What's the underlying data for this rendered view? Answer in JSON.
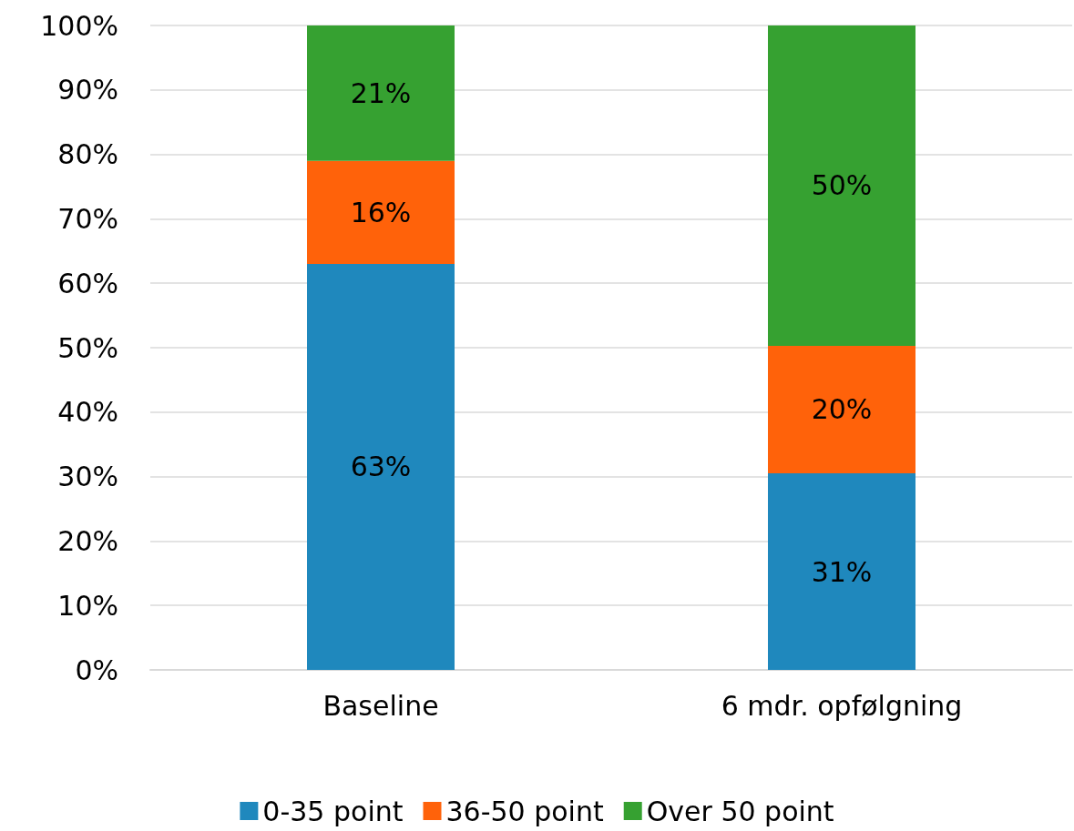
{
  "chart_data": {
    "type": "bar",
    "stacked": true,
    "categories": [
      "Baseline",
      "6 mdr. opfølgning"
    ],
    "series": [
      {
        "name": "0-35 point",
        "color": "#1f88bd",
        "values": [
          63,
          30.5
        ],
        "value_labels": [
          "63%",
          "31%"
        ]
      },
      {
        "name": "36-50 point",
        "color": "#ff620a",
        "values": [
          16,
          19.8
        ],
        "value_labels": [
          "16%",
          "20%"
        ]
      },
      {
        "name": "Over 50 point",
        "color": "#36a131",
        "values": [
          21,
          49.7
        ],
        "value_labels": [
          "21%",
          "50%"
        ]
      }
    ],
    "ylim": [
      0,
      100
    ],
    "yticks": [
      {
        "value": 0,
        "label": "0%"
      },
      {
        "value": 10,
        "label": "10%"
      },
      {
        "value": 20,
        "label": "20%"
      },
      {
        "value": 30,
        "label": "30%"
      },
      {
        "value": 40,
        "label": "40%"
      },
      {
        "value": 50,
        "label": "50%"
      },
      {
        "value": 60,
        "label": "60%"
      },
      {
        "value": 70,
        "label": "70%"
      },
      {
        "value": 80,
        "label": "80%"
      },
      {
        "value": 90,
        "label": "90%"
      },
      {
        "value": 100,
        "label": "100%"
      }
    ],
    "grid": "y",
    "legend": "bottom"
  }
}
